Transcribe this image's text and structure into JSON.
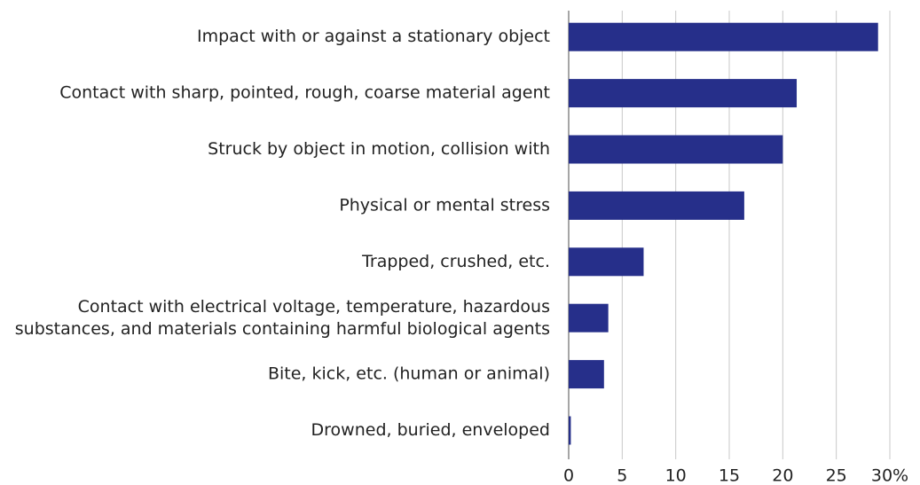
{
  "chart_data": {
    "type": "hbar",
    "categories": [
      "Impact with or against a stationary object",
      "Contact with sharp, pointed, rough, coarse material agent",
      "Struck by object in motion, collision with",
      "Physical or mental stress",
      "Trapped, crushed, etc.",
      "Contact with electrical voltage, temperature, hazardous\nsubstances, and materials containing harmful biological agents",
      "Bite, kick, etc. (human or animal)",
      "Drowned, buried, enveloped"
    ],
    "values": [
      28.9,
      21.3,
      20.0,
      16.4,
      7.0,
      3.7,
      3.3,
      0.2
    ],
    "color": "#262f8a",
    "xlim": [
      0,
      30
    ],
    "xticks": [
      0,
      5,
      10,
      15,
      20,
      25,
      {
        "value": 30,
        "label": "30%"
      }
    ],
    "grid": true
  }
}
